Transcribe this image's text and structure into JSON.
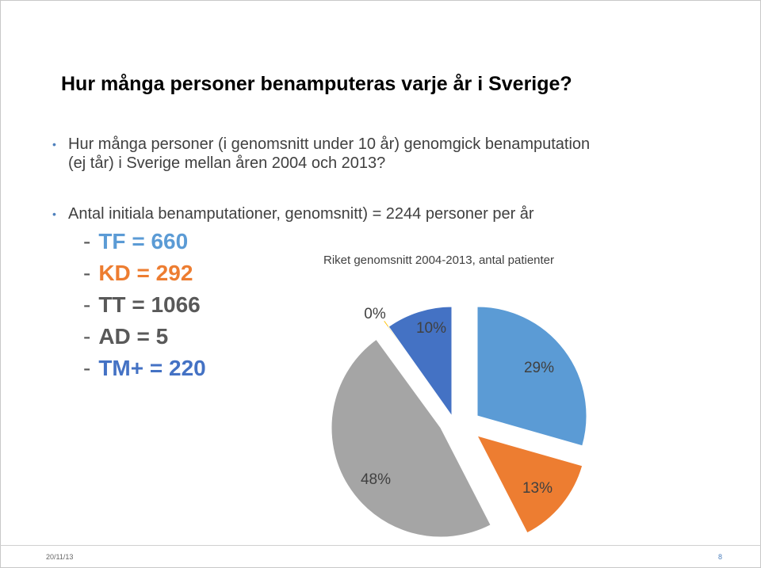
{
  "slide": {
    "title": "Hur många personer benamputeras varje år i Sverige?",
    "bullet1_line1": "Hur många personer (i genomsnitt under 10 år) genomgick benamputation",
    "bullet1_line2": "(ej tår) i Sverige mellan åren 2004 och 2013?",
    "bullet2": "Antal initiala benamputationer, genomsnitt) = 2244 personer per år",
    "dash": "-",
    "sub_items": [
      {
        "text": "TF = 660",
        "color": "#5b9bd5"
      },
      {
        "text": "KD = 292",
        "color": "#ed7d31"
      },
      {
        "text": "TT = 1066",
        "color": "#595959"
      },
      {
        "text": "AD = 5",
        "color": "#595959"
      },
      {
        "text": "TM+ = 220",
        "color": "#4472c4"
      }
    ]
  },
  "chart_data": {
    "type": "pie",
    "title": "Riket genomsnitt 2004-2013, antal patienter",
    "slices": [
      {
        "label": "29%",
        "value": 660,
        "color": "#5b9bd5"
      },
      {
        "label": "13%",
        "value": 292,
        "color": "#ed7d31"
      },
      {
        "label": "48%",
        "value": 1066,
        "color": "#a5a5a5"
      },
      {
        "label": "0%",
        "value": 5,
        "color": "#ffc000"
      },
      {
        "label": "10%",
        "value": 220,
        "color": "#4472c4"
      }
    ],
    "exploded": true
  },
  "footer": {
    "date": "20/11/13",
    "page": "8"
  }
}
